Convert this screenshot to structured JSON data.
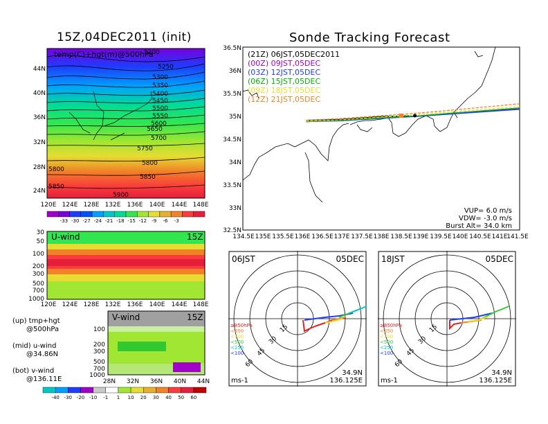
{
  "left": {
    "title": "15Z,04DEC2011  (init)",
    "map_label": "temp(C)+hgt(m)@500hPa",
    "x_ticks": [
      "120E",
      "124E",
      "128E",
      "132E",
      "136E",
      "140E",
      "144E",
      "148E"
    ],
    "y_ticks": [
      "44N",
      "40N",
      "36N",
      "32N",
      "28N",
      "24N"
    ],
    "contours": [
      "5200",
      "5250",
      "5300",
      "5350",
      "5400",
      "5450",
      "5500",
      "5550",
      "5600",
      "5650",
      "5700",
      "5750",
      "5800",
      "5850",
      "5900",
      "5800",
      "5850"
    ],
    "temp_colorbar": [
      "-33",
      "-30",
      "-27",
      "-24",
      "-21",
      "-18",
      "-15",
      "-12",
      "-9",
      "-6",
      "-3"
    ],
    "temp_colors": [
      "#a000c8",
      "#7800dc",
      "#1e3cff",
      "#0050ff",
      "#00a0ff",
      "#00c8c8",
      "#00dc96",
      "#32e650",
      "#a0e632",
      "#e6dc32",
      "#e6af2d",
      "#f08228",
      "#fa3c3c",
      "#e61e3c"
    ],
    "uwind": {
      "label": "U-wind",
      "time": "15Z",
      "p_ticks": [
        "30",
        "50",
        "100",
        "200",
        "300",
        "500",
        "700",
        "1000"
      ],
      "x_ticks": [
        "120E",
        "124E",
        "128E",
        "132E",
        "136E",
        "140E",
        "144E",
        "148E"
      ]
    },
    "vwind": {
      "label": "V-wind",
      "time": "15Z",
      "p_ticks": [
        "100",
        "200",
        "300",
        "500",
        "700",
        "1000"
      ],
      "x_ticks": [
        "28N",
        "32N",
        "36N",
        "40N",
        "44N"
      ]
    },
    "notes": [
      {
        "a": "(up) tmp+hgt",
        "b": "@500hPa"
      },
      {
        "a": "(mid) u-wind",
        "b": "@34.86N"
      },
      {
        "a": "(bot) v-wind",
        "b": "@136.11E"
      }
    ],
    "wind_colorbar": [
      "-40",
      "-30",
      "-20",
      "-10",
      "-1",
      "1",
      "10",
      "20",
      "30",
      "40",
      "50",
      "60"
    ],
    "wind_colors": [
      "#00c8c8",
      "#00a0ff",
      "#1e3cff",
      "#a000c8",
      "#c8c8c8",
      "#ffffff",
      "#a0e632",
      "#e6dc32",
      "#e6af2d",
      "#f08228",
      "#fa3c3c",
      "#e61e3c",
      "#c00000"
    ]
  },
  "track": {
    "title": "Sonde Tracking Forecast",
    "legend": [
      {
        "text": "(21Z)  06JST,05DEC2011",
        "color": "#000000"
      },
      {
        "text": "(00Z)  09JST,05DEC",
        "color": "#a000c8"
      },
      {
        "text": "(03Z)  12JST,05DEC",
        "color": "#1e3cff"
      },
      {
        "text": "(06Z)  15JST,05DEC",
        "color": "#00b000"
      },
      {
        "text": "(09Z)  18JST,05DEC",
        "color": "#e6dc32"
      },
      {
        "text": "(12Z)  21JST,05DEC",
        "color": "#f08228"
      }
    ],
    "y_ticks": [
      "36.5N",
      "36N",
      "35.5N",
      "35N",
      "34.5N",
      "34N",
      "33.5N",
      "33N",
      "32.5N"
    ],
    "x_ticks": [
      "134.5E",
      "135E",
      "135.5E",
      "136E",
      "136.5E",
      "137E",
      "137.5E",
      "138E",
      "138.5E",
      "139E",
      "139.5E",
      "140E",
      "140.5E",
      "141E",
      "141.5E"
    ],
    "vup": "VUP=  6.0  m/s",
    "vdw": "VDW=  -3.0  m/s",
    "burst": "Burst Alt=  34.0  km"
  },
  "polar_left": {
    "time": "06JST",
    "date": "05DEC",
    "rings": [
      "15",
      "30",
      "45",
      "60"
    ],
    "legend": [
      "≥850hPa",
      "<850",
      "<700",
      "<500",
      "<250",
      "<100"
    ],
    "legend_colors": [
      "#e61e1e",
      "#f08228",
      "#e6dc32",
      "#32c832",
      "#00c8c8",
      "#1e3cff"
    ],
    "lat": "34.9N",
    "lon": "136.125E",
    "unit": "ms-1"
  },
  "polar_right": {
    "time": "18JST",
    "date": "05DEC",
    "rings": [
      "15",
      "30",
      "45",
      "60"
    ],
    "legend": [
      "≥850hPa",
      "<850",
      "<700",
      "<500",
      "<250",
      "<100"
    ],
    "legend_colors": [
      "#e61e1e",
      "#f08228",
      "#e6dc32",
      "#32c832",
      "#00c8c8",
      "#1e3cff"
    ],
    "lat": "34.9N",
    "lon": "136.125E",
    "unit": "ms-1"
  },
  "chart_data": [
    {
      "type": "heatmap",
      "title": "15Z,04DEC2011  (init)",
      "label": "temp(C)+hgt(m)@500hPa",
      "x_range": [
        120,
        149
      ],
      "y_range": [
        22,
        47
      ],
      "contour_levels": [
        5200,
        5250,
        5300,
        5350,
        5400,
        5450,
        5500,
        5550,
        5600,
        5650,
        5700,
        5750,
        5800,
        5850,
        5900
      ],
      "colorbar": [
        -33,
        -30,
        -27,
        -24,
        -21,
        -18,
        -15,
        -12,
        -9,
        -6,
        -3
      ]
    },
    {
      "type": "heatmap",
      "title": "U-wind",
      "x_range": [
        120,
        149
      ],
      "y_ticks": [
        30,
        50,
        100,
        200,
        300,
        500,
        700,
        1000
      ]
    },
    {
      "type": "heatmap",
      "title": "V-wind",
      "x_range": [
        28,
        44
      ],
      "y_ticks": [
        100,
        200,
        300,
        500,
        700,
        1000
      ],
      "colorbar": [
        -40,
        -30,
        -20,
        -10,
        -1,
        1,
        10,
        20,
        30,
        40,
        50,
        60
      ]
    },
    {
      "type": "line",
      "title": "Sonde Tracking Forecast",
      "xlim": [
        134.5,
        141.5
      ],
      "ylim": [
        32.5,
        36.5
      ],
      "series": [
        {
          "name": "(21Z)  06JST,05DEC2011",
          "x": [
            136.1,
            137.0,
            138.0,
            138.7
          ],
          "y": [
            34.9,
            34.92,
            34.98,
            35.0
          ]
        },
        {
          "name": "(00Z)  09JST,05DEC",
          "x": [
            136.1,
            137.0,
            138.0,
            139.0,
            140.0,
            141.5
          ],
          "y": [
            34.87,
            34.9,
            34.95,
            35.0,
            35.07,
            35.15
          ]
        },
        {
          "name": "(03Z)  12JST,05DEC",
          "x": [
            136.1,
            137.0,
            138.0,
            139.0,
            140.0,
            141.5
          ],
          "y": [
            34.87,
            34.89,
            34.94,
            34.99,
            35.05,
            35.14
          ]
        },
        {
          "name": "(06Z)  15JST,05DEC",
          "x": [
            136.1,
            137.0,
            138.0,
            139.0,
            140.0,
            141.5
          ],
          "y": [
            34.87,
            34.9,
            34.95,
            35.0,
            35.07,
            35.17
          ]
        },
        {
          "name": "(09Z)  18JST,05DEC",
          "x": [
            136.1,
            137.0,
            138.0,
            139.0,
            140.0,
            141.5
          ],
          "y": [
            34.88,
            34.91,
            34.97,
            35.03,
            35.1,
            35.2
          ]
        },
        {
          "name": "(12Z)  21JST,05DEC",
          "x": [
            136.1,
            137.0,
            138.0,
            139.0,
            140.0,
            141.5
          ],
          "y": [
            34.9,
            34.94,
            35.0,
            35.06,
            35.14,
            35.26
          ]
        }
      ]
    }
  ]
}
